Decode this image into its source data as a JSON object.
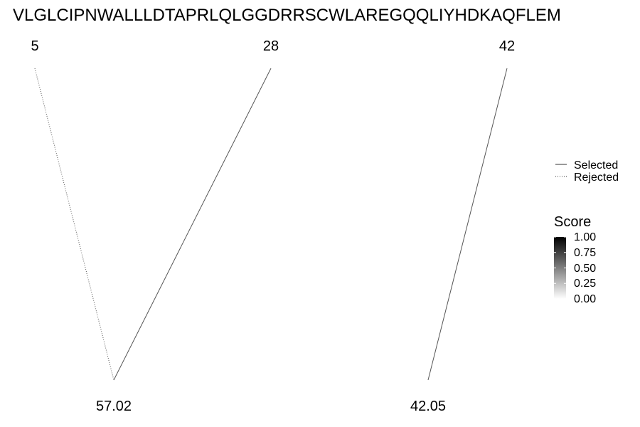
{
  "sequence": "VLGLCIPNWALLLDTAPRLQLGGDRRSCWLAREGQQLIYHDKAQFLEM",
  "top_labels": [
    "5",
    "28",
    "42"
  ],
  "bottom_labels": [
    "57.02",
    "42.05"
  ],
  "connections": [
    {
      "from": "5",
      "to": "57.02",
      "status": "Rejected"
    },
    {
      "from": "28",
      "to": "57.02",
      "status": "Selected"
    },
    {
      "from": "42",
      "to": "42.05",
      "status": "Selected"
    }
  ],
  "legend": {
    "line_types": [
      {
        "label": "Selected",
        "style": "solid"
      },
      {
        "label": "Rejected",
        "style": "dotted"
      }
    ],
    "score": {
      "title": "Score",
      "ticks": [
        "1.00",
        "0.75",
        "0.50",
        "0.25",
        "0.00"
      ],
      "gradient_colors": [
        "#000000",
        "#ffffff"
      ]
    }
  },
  "colors": {
    "line": "#555555",
    "text": "#000000"
  }
}
